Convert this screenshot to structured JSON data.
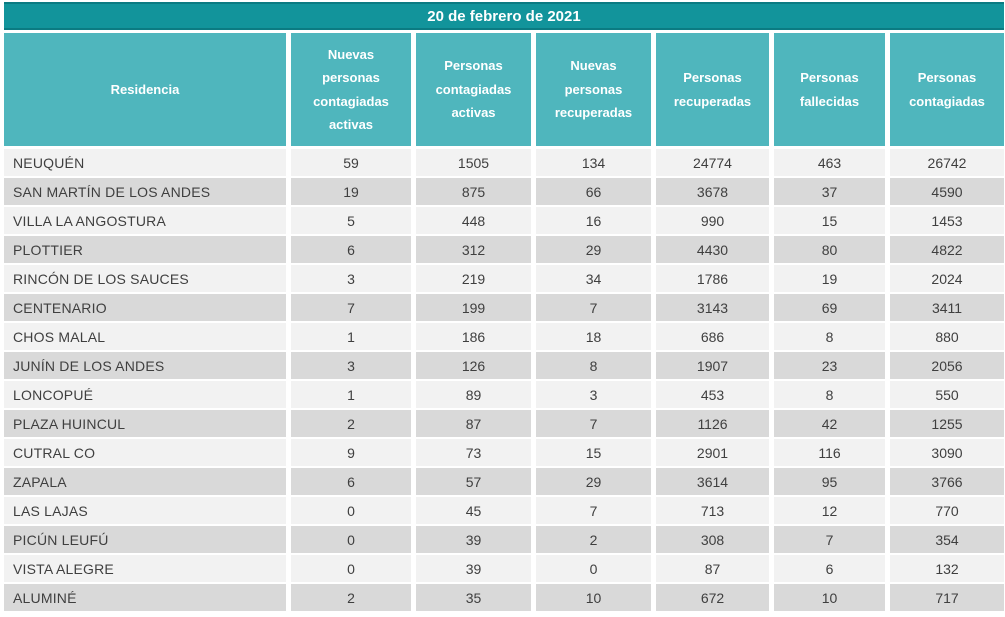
{
  "header": {
    "title": "20 de febrero de 2021"
  },
  "colors": {
    "title_bar": "#12949B",
    "title_bar_border": "#0B7B82",
    "header_cell": "#4FB6BD",
    "row_light": "#F2F2F2",
    "row_dark": "#D9D9D9",
    "text": "#3F3F3F",
    "header_text": "#FFFFFF"
  },
  "chart_data": {
    "type": "table",
    "title": "20 de febrero de 2021",
    "columns": [
      "Residencia",
      "Nuevas\npersonas\ncontagiadas\nactivas",
      "Personas\ncontagiadas\nactivas",
      "Nuevas\npersonas\nrecuperadas",
      "Personas\nrecuperadas",
      "Personas\nfallecidas",
      "Personas\ncontagiadas"
    ],
    "rows": [
      {
        "residencia": "NEUQUÉN",
        "values": [
          59,
          1505,
          134,
          24774,
          463,
          26742
        ]
      },
      {
        "residencia": "SAN MARTÍN DE LOS ANDES",
        "values": [
          19,
          875,
          66,
          3678,
          37,
          4590
        ]
      },
      {
        "residencia": "VILLA LA ANGOSTURA",
        "values": [
          5,
          448,
          16,
          990,
          15,
          1453
        ]
      },
      {
        "residencia": "PLOTTIER",
        "values": [
          6,
          312,
          29,
          4430,
          80,
          4822
        ]
      },
      {
        "residencia": "RINCÓN DE LOS SAUCES",
        "values": [
          3,
          219,
          34,
          1786,
          19,
          2024
        ]
      },
      {
        "residencia": "CENTENARIO",
        "values": [
          7,
          199,
          7,
          3143,
          69,
          3411
        ]
      },
      {
        "residencia": "CHOS MALAL",
        "values": [
          1,
          186,
          18,
          686,
          8,
          880
        ]
      },
      {
        "residencia": "JUNÍN DE LOS ANDES",
        "values": [
          3,
          126,
          8,
          1907,
          23,
          2056
        ]
      },
      {
        "residencia": "LONCOPUÉ",
        "values": [
          1,
          89,
          3,
          453,
          8,
          550
        ]
      },
      {
        "residencia": "PLAZA HUINCUL",
        "values": [
          2,
          87,
          7,
          1126,
          42,
          1255
        ]
      },
      {
        "residencia": "CUTRAL CO",
        "values": [
          9,
          73,
          15,
          2901,
          116,
          3090
        ]
      },
      {
        "residencia": "ZAPALA",
        "values": [
          6,
          57,
          29,
          3614,
          95,
          3766
        ]
      },
      {
        "residencia": "LAS LAJAS",
        "values": [
          0,
          45,
          7,
          713,
          12,
          770
        ]
      },
      {
        "residencia": "PICÚN LEUFÚ",
        "values": [
          0,
          39,
          2,
          308,
          7,
          354
        ]
      },
      {
        "residencia": "VISTA ALEGRE",
        "values": [
          0,
          39,
          0,
          87,
          6,
          132
        ]
      },
      {
        "residencia": "ALUMINÉ",
        "values": [
          2,
          35,
          10,
          672,
          10,
          717
        ]
      }
    ]
  }
}
